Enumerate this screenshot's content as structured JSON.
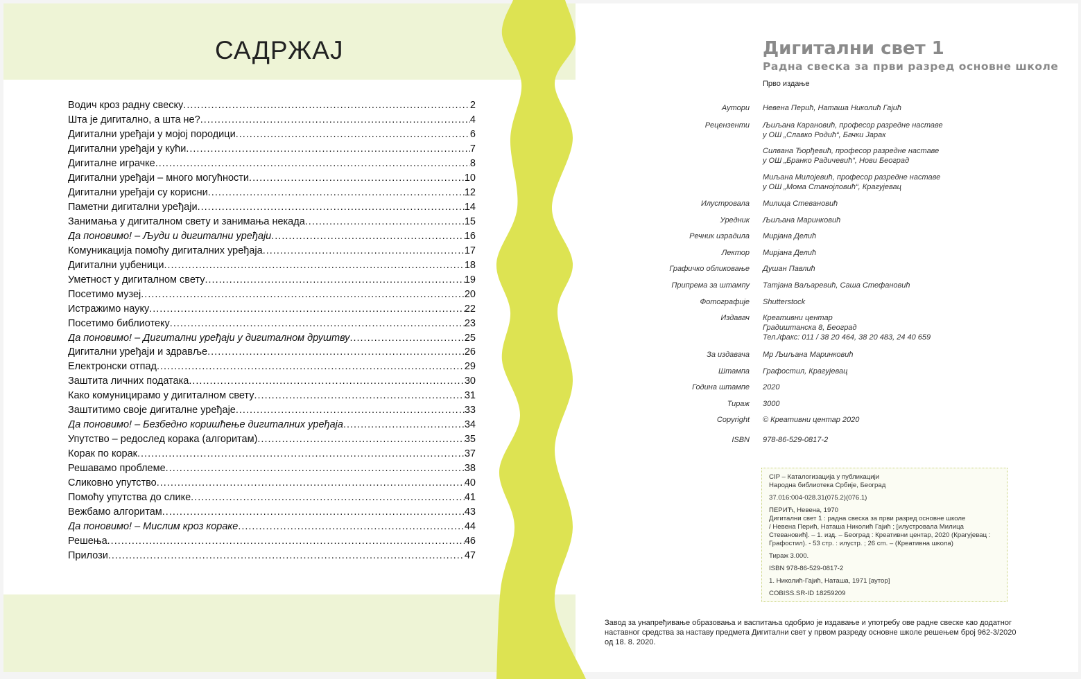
{
  "toc": {
    "title": "САДРЖАЈ",
    "items": [
      {
        "title": "Водич кроз радну свеску",
        "page": "2"
      },
      {
        "title": "Шта је дигитално, а шта не?",
        "page": "4"
      },
      {
        "title": "Дигитални уређаји у мојој породици",
        "page": "6"
      },
      {
        "title": "Дигитални уређаји у кући",
        "page": "7"
      },
      {
        "title": "Дигиталне играчке",
        "page": "8"
      },
      {
        "title": "Дигитални уређаји – много могућности",
        "page": "10"
      },
      {
        "title": "Дигитални уређаји су корисни",
        "page": "12"
      },
      {
        "title": "Паметни дигитални уређаји",
        "page": "14"
      },
      {
        "title": "Занимања у дигиталном свету и занимања некада",
        "page": "15"
      },
      {
        "title": "Да поновимо! – Људи и дигитални уређаји",
        "page": "16",
        "italic": true
      },
      {
        "title": "Комуникација помоћу дигиталних уређаја",
        "page": "17"
      },
      {
        "title": "Дигитални уџбеници",
        "page": "18"
      },
      {
        "title": "Уметност у дигиталном свету ",
        "page": "19"
      },
      {
        "title": "Посетимо музеј ",
        "page": "20"
      },
      {
        "title": "Истражимо науку",
        "page": "22"
      },
      {
        "title": "Посетимо библиотеку",
        "page": "23"
      },
      {
        "title": "Да поновимо! – Дигитални уређаји у дигиталном друштву ",
        "page": "25",
        "italic": true
      },
      {
        "title": "Дигитални уређаји и здравље",
        "page": "26"
      },
      {
        "title": "Електронски отпад",
        "page": "29"
      },
      {
        "title": "Заштита личних података",
        "page": "30"
      },
      {
        "title": "Како комуницирамо у дигиталном свету",
        "page": "31"
      },
      {
        "title": "Заштитимо своје дигиталне уређаје",
        "page": "33"
      },
      {
        "title": "Да поновимо! – Безбедно коришћење дигиталних уређаја",
        "page": "34",
        "italic": true
      },
      {
        "title": "Упутство – редослед корака (алгоритам)",
        "page": "35"
      },
      {
        "title": "Корак по корак",
        "page": "37"
      },
      {
        "title": "Решавамо проблеме",
        "page": "38"
      },
      {
        "title": "Сликовно упутство",
        "page": "40"
      },
      {
        "title": "Помоћу упутства до слике ",
        "page": "41"
      },
      {
        "title": "Вежбамо алгоритам",
        "page": "43"
      },
      {
        "title": "Да поновимо! – Мислим кроз кораке",
        "page": "44",
        "italic": true
      },
      {
        "title": "Решења",
        "page": "46"
      },
      {
        "title": "Прилози ",
        "page": "47"
      }
    ]
  },
  "book": {
    "title": "Дигитални свет 1",
    "subtitle": "Радна свеска за први разред основне школе",
    "edition": "Прво издање"
  },
  "credits": [
    {
      "label": "Аутори",
      "value": "Невена Перић, Наташа Николић Гајић"
    },
    {
      "label": "Рецензенти",
      "value": "Љиљана Карановић, професор разредне наставе\nу ОШ „Славко Родић“, Бачки Јарак"
    },
    {
      "label": "",
      "value": "Силвана Ђорђевић, професор разредне наставе\nу ОШ „Бранко Радичевић“, Нови Београд"
    },
    {
      "label": "",
      "value": "Миљана Милојевић, професор разредне наставе\nу ОШ „Мома Станојловић“, Крагујевац"
    },
    {
      "label": "Илустровала",
      "value": "Милица Стевановић"
    },
    {
      "label": "Уредник",
      "value": "Љиљана Маринковић"
    },
    {
      "label": "Речник израдила",
      "value": "Мирјана Делић"
    },
    {
      "label": "Лектор",
      "value": "Мирјана Делић"
    },
    {
      "label": "Графичко обликовање",
      "value": "Душан Павлић"
    },
    {
      "label": "Припрема за штампу",
      "value": "Татјана Ваљаревић, Саша Стефановић"
    },
    {
      "label": "Фотографије",
      "value": "Shutterstock"
    },
    {
      "label": "Издавач",
      "value": "Креативни центар\nГрадиштанска 8, Београд\nТел./факс: 011 / 38 20 464, 38 20 483, 24 40 659"
    },
    {
      "label": "За издавача",
      "value": "Мр Љиљана Маринковић"
    },
    {
      "label": "Штампа",
      "value": "Графостил, Крагујевац"
    },
    {
      "label": "Година штампе",
      "value": "2020"
    },
    {
      "label": "Тираж",
      "value": "3000"
    },
    {
      "label": "Copyright",
      "value": "© Креативни центар 2020"
    },
    {
      "label": "ISBN",
      "value": "978-86-529-0817-2"
    }
  ],
  "cip": [
    "CIP – Каталогизација у публикацији\nНародна библиотека Србије, Београд",
    "37.016:004-028.31(075.2)(076.1)",
    "ПЕРИЋ, Невена, 1970\n    Дигитални свет 1 : радна свеска за први разред основне школе\n/ Невена Перић, Наташа Николић Гајић ; [илустровала Милица\nСтевановић]. – 1. изд. – Београд : Креативни центар, 2020 (Крагујевац :\nГрафостил). - 53 стр. : илустр. ; 26 cm. – (Креативна школа)",
    "Тираж 3.000.",
    "ISBN 978-86-529-0817-2",
    "1. Николић-Гајић, Наташа, 1971 [аутор]",
    "COBISS.SR-ID 18259209"
  ],
  "approval": "Завод за унапређивање образовања и васпитања одобрио је издавање и употребу ове радне свеске као додатног наставног средства за наставу предмета Дигитални свет у првом разреду основне школе решењем број 962-3/2020 од 18. 8. 2020.",
  "colors": {
    "wave": "#dde352",
    "band": "#eef4d6"
  }
}
